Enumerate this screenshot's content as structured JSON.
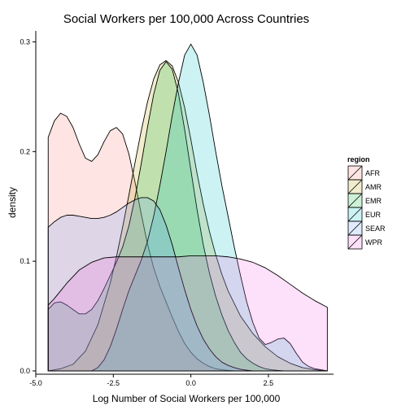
{
  "chart_data": {
    "type": "area",
    "title": "Social Workers per 100,000 Across Countries",
    "xlabel": "Log Number of Social Workers per 100,000",
    "ylabel": "density",
    "xlim": [
      -5.0,
      4.6
    ],
    "ylim": [
      -0.003,
      0.31
    ],
    "x_ticks": [
      -5.0,
      -2.5,
      0.0,
      2.5
    ],
    "x_tick_labels": [
      "-5.0",
      "-2.5",
      "0.0",
      "2.5"
    ],
    "y_ticks": [
      0.0,
      0.1,
      0.2,
      0.3
    ],
    "y_tick_labels": [
      "0.0",
      "0.1",
      "0.2",
      "0.3"
    ],
    "grid": false,
    "legend": {
      "title": "region",
      "position": "right"
    },
    "series": [
      {
        "name": "AFR",
        "color": "#F8766D",
        "x": [
          -4.6,
          -4.4,
          -4.2,
          -4.0,
          -3.8,
          -3.6,
          -3.4,
          -3.2,
          -3.0,
          -2.8,
          -2.6,
          -2.4,
          -2.2,
          -2.0,
          -1.8,
          -1.6,
          -1.4,
          -1.2,
          -1.0,
          -0.8,
          -0.6,
          -0.4,
          -0.2,
          0.0,
          0.2,
          0.4,
          0.6,
          0.8,
          1.0,
          1.2,
          1.4
        ],
        "y": [
          0.213,
          0.228,
          0.235,
          0.232,
          0.222,
          0.207,
          0.194,
          0.191,
          0.197,
          0.209,
          0.219,
          0.222,
          0.216,
          0.198,
          0.172,
          0.143,
          0.116,
          0.094,
          0.077,
          0.063,
          0.049,
          0.036,
          0.025,
          0.017,
          0.011,
          0.007,
          0.004,
          0.002,
          0.001,
          0.0005,
          0.0
        ]
      },
      {
        "name": "AMR",
        "color": "#B79F00",
        "x": [
          -4.6,
          -4.2,
          -3.8,
          -3.4,
          -3.0,
          -2.6,
          -2.4,
          -2.2,
          -2.0,
          -1.8,
          -1.6,
          -1.4,
          -1.2,
          -1.0,
          -0.8,
          -0.6,
          -0.4,
          -0.2,
          0.0,
          0.2,
          0.4,
          0.6,
          0.8,
          1.0,
          1.2,
          1.6,
          2.0,
          2.4,
          2.8,
          3.2,
          3.6,
          4.0,
          4.4
        ],
        "y": [
          0.0,
          0.002,
          0.006,
          0.018,
          0.042,
          0.08,
          0.104,
          0.131,
          0.16,
          0.19,
          0.219,
          0.245,
          0.266,
          0.279,
          0.283,
          0.278,
          0.263,
          0.24,
          0.211,
          0.18,
          0.152,
          0.127,
          0.106,
          0.088,
          0.073,
          0.05,
          0.034,
          0.022,
          0.013,
          0.007,
          0.003,
          0.001,
          0.0
        ]
      },
      {
        "name": "EMR",
        "color": "#00BA38",
        "x": [
          -4.6,
          -4.4,
          -4.2,
          -4.0,
          -3.8,
          -3.6,
          -3.4,
          -3.2,
          -3.0,
          -2.8,
          -2.6,
          -2.4,
          -2.2,
          -2.0,
          -1.8,
          -1.6,
          -1.4,
          -1.2,
          -1.0,
          -0.8,
          -0.6,
          -0.4,
          -0.2,
          0.0,
          0.2,
          0.4,
          0.6,
          0.8,
          1.0,
          1.2,
          1.4,
          1.6,
          1.8,
          2.0,
          2.2,
          2.4,
          2.6,
          2.8,
          3.0
        ],
        "y": [
          0.056,
          0.062,
          0.063,
          0.06,
          0.056,
          0.052,
          0.052,
          0.056,
          0.064,
          0.075,
          0.087,
          0.099,
          0.113,
          0.132,
          0.158,
          0.189,
          0.222,
          0.252,
          0.274,
          0.282,
          0.275,
          0.253,
          0.22,
          0.183,
          0.147,
          0.115,
          0.089,
          0.068,
          0.051,
          0.037,
          0.026,
          0.017,
          0.011,
          0.007,
          0.004,
          0.002,
          0.001,
          0.0005,
          0.0
        ]
      },
      {
        "name": "EUR",
        "color": "#00BFC4",
        "x": [
          -3.2,
          -3.0,
          -2.8,
          -2.6,
          -2.4,
          -2.2,
          -2.0,
          -1.8,
          -1.6,
          -1.4,
          -1.2,
          -1.0,
          -0.8,
          -0.6,
          -0.4,
          -0.2,
          0.0,
          0.2,
          0.4,
          0.6,
          0.8,
          1.0,
          1.2,
          1.4,
          1.6,
          1.8,
          2.0,
          2.2,
          2.4,
          2.6,
          2.8,
          3.0,
          3.2,
          3.4,
          3.6,
          3.8,
          4.0,
          4.2,
          4.4
        ],
        "y": [
          0.0,
          0.003,
          0.01,
          0.022,
          0.038,
          0.056,
          0.073,
          0.087,
          0.101,
          0.118,
          0.141,
          0.169,
          0.2,
          0.233,
          0.263,
          0.288,
          0.298,
          0.288,
          0.263,
          0.233,
          0.2,
          0.169,
          0.141,
          0.113,
          0.087,
          0.063,
          0.044,
          0.03,
          0.024,
          0.026,
          0.029,
          0.03,
          0.025,
          0.016,
          0.008,
          0.004,
          0.002,
          0.001,
          0.0
        ]
      },
      {
        "name": "SEAR",
        "color": "#619CFF",
        "x": [
          -4.6,
          -4.4,
          -4.2,
          -4.0,
          -3.8,
          -3.6,
          -3.4,
          -3.2,
          -3.0,
          -2.8,
          -2.6,
          -2.4,
          -2.2,
          -2.0,
          -1.8,
          -1.6,
          -1.4,
          -1.2,
          -1.0,
          -0.8,
          -0.6,
          -0.4,
          -0.2,
          0.0,
          0.2,
          0.4,
          0.6,
          0.8,
          1.0,
          1.2,
          1.4,
          1.6,
          1.8,
          2.0
        ],
        "y": [
          0.131,
          0.136,
          0.14,
          0.142,
          0.142,
          0.141,
          0.14,
          0.139,
          0.139,
          0.14,
          0.142,
          0.145,
          0.149,
          0.153,
          0.156,
          0.158,
          0.158,
          0.155,
          0.147,
          0.133,
          0.115,
          0.094,
          0.074,
          0.056,
          0.041,
          0.029,
          0.02,
          0.013,
          0.008,
          0.005,
          0.003,
          0.0015,
          0.0007,
          0.0
        ]
      },
      {
        "name": "WPR",
        "color": "#F564E3",
        "x": [
          -4.6,
          -4.4,
          -4.2,
          -4.0,
          -3.6,
          -3.2,
          -2.8,
          -2.4,
          -2.0,
          -1.6,
          -1.2,
          -0.8,
          -0.4,
          0.0,
          0.4,
          0.8,
          1.2,
          1.6,
          2.0,
          2.4,
          2.8,
          3.2,
          3.6,
          4.0,
          4.4
        ],
        "y": [
          0.06,
          0.066,
          0.073,
          0.08,
          0.092,
          0.099,
          0.103,
          0.104,
          0.104,
          0.104,
          0.104,
          0.104,
          0.104,
          0.105,
          0.105,
          0.105,
          0.104,
          0.102,
          0.099,
          0.094,
          0.087,
          0.079,
          0.071,
          0.064,
          0.058
        ]
      }
    ]
  }
}
